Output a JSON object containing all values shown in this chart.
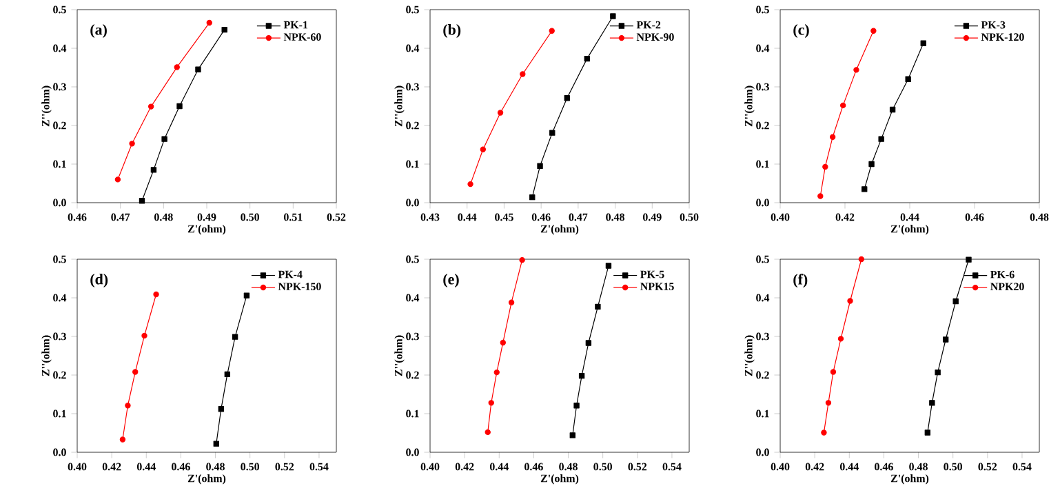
{
  "chart_data": [
    {
      "type": "line",
      "annotations": [
        "(a)"
      ],
      "xlabel": "Z'(ohm)",
      "ylabel": "Z''(ohm)",
      "legend": "top right",
      "xlim": [
        0.46,
        0.52
      ],
      "ylim": [
        0,
        0.5
      ],
      "xticks": [
        {
          "value": 0.46,
          "label": "0.46"
        },
        {
          "value": 0.47,
          "label": "0.47"
        },
        {
          "value": 0.48,
          "label": "0.48"
        },
        {
          "value": 0.49,
          "label": "0.49"
        },
        {
          "value": 0.5,
          "label": "0.50"
        },
        {
          "value": 0.51,
          "label": "0.51"
        },
        {
          "value": 0.52,
          "label": "0.52"
        }
      ],
      "yticks": [
        {
          "value": 0,
          "label": "0.0"
        },
        {
          "value": 0.1,
          "label": "0.1"
        },
        {
          "value": 0.2,
          "label": "0.2"
        },
        {
          "value": 0.3,
          "label": "0.3"
        },
        {
          "value": 0.4,
          "label": "0.4"
        },
        {
          "value": 0.5,
          "label": "0.5"
        }
      ],
      "series": [
        {
          "name": "PK-1",
          "color": "#000000",
          "marker": "square",
          "x": [
            0.475,
            0.4777,
            0.4802,
            0.4837,
            0.488,
            0.4941
          ],
          "values": [
            0.005,
            0.085,
            0.165,
            0.25,
            0.345,
            0.448
          ]
        },
        {
          "name": "NPK-60",
          "color": "#ff0000",
          "marker": "circle",
          "x": [
            0.4694,
            0.4727,
            0.4771,
            0.4831,
            0.4906
          ],
          "values": [
            0.06,
            0.153,
            0.249,
            0.351,
            0.466
          ]
        }
      ]
    },
    {
      "type": "line",
      "annotations": [
        "(b)"
      ],
      "xlabel": "Z'(ohm)",
      "ylabel": "Z''(ohm)",
      "legend": "top right",
      "xlim": [
        0.43,
        0.5
      ],
      "ylim": [
        0,
        0.5
      ],
      "xticks": [
        {
          "value": 0.43,
          "label": "0.43"
        },
        {
          "value": 0.44,
          "label": "0.44"
        },
        {
          "value": 0.45,
          "label": "0.45"
        },
        {
          "value": 0.46,
          "label": "0.46"
        },
        {
          "value": 0.47,
          "label": "0.47"
        },
        {
          "value": 0.48,
          "label": "0.48"
        },
        {
          "value": 0.49,
          "label": "0.49"
        },
        {
          "value": 0.5,
          "label": "0.50"
        }
      ],
      "yticks": [
        {
          "value": 0,
          "label": "0.0"
        },
        {
          "value": 0.1,
          "label": "0.1"
        },
        {
          "value": 0.2,
          "label": "0.2"
        },
        {
          "value": 0.3,
          "label": "0.3"
        },
        {
          "value": 0.4,
          "label": "0.4"
        },
        {
          "value": 0.5,
          "label": "0.5"
        }
      ],
      "series": [
        {
          "name": "PK-2",
          "color": "#000000",
          "marker": "square",
          "x": [
            0.4576,
            0.4597,
            0.463,
            0.467,
            0.4724,
            0.4794
          ],
          "values": [
            0.014,
            0.095,
            0.181,
            0.271,
            0.373,
            0.483
          ]
        },
        {
          "name": "NPK-90",
          "color": "#ff0000",
          "marker": "circle",
          "x": [
            0.4409,
            0.4443,
            0.449,
            0.455,
            0.4629
          ],
          "values": [
            0.048,
            0.138,
            0.233,
            0.333,
            0.445
          ]
        }
      ]
    },
    {
      "type": "line",
      "annotations": [
        "(c)"
      ],
      "xlabel": "Z'(ohm)",
      "ylabel": "Z''(ohm)",
      "legend": "top right",
      "xlim": [
        0.4,
        0.48
      ],
      "ylim": [
        0,
        0.5
      ],
      "xticks": [
        {
          "value": 0.4,
          "label": "0.40"
        },
        {
          "value": 0.42,
          "label": "0.42"
        },
        {
          "value": 0.44,
          "label": "0.44"
        },
        {
          "value": 0.46,
          "label": "0.46"
        },
        {
          "value": 0.48,
          "label": "0.48"
        }
      ],
      "yticks": [
        {
          "value": 0,
          "label": "0.0"
        },
        {
          "value": 0.1,
          "label": "0.1"
        },
        {
          "value": 0.2,
          "label": "0.2"
        },
        {
          "value": 0.3,
          "label": "0.3"
        },
        {
          "value": 0.4,
          "label": "0.4"
        },
        {
          "value": 0.5,
          "label": "0.5"
        }
      ],
      "series": [
        {
          "name": "PK-3",
          "color": "#000000",
          "marker": "square",
          "x": [
            0.426,
            0.4282,
            0.4312,
            0.4347,
            0.4395,
            0.4442
          ],
          "values": [
            0.035,
            0.1,
            0.165,
            0.241,
            0.32,
            0.413
          ]
        },
        {
          "name": "NPK-120",
          "color": "#ff0000",
          "marker": "circle",
          "x": [
            0.4124,
            0.4139,
            0.4162,
            0.4194,
            0.4235,
            0.4288
          ],
          "values": [
            0.017,
            0.093,
            0.17,
            0.252,
            0.344,
            0.445
          ]
        }
      ]
    },
    {
      "type": "line",
      "annotations": [
        "(d)"
      ],
      "xlabel": "Z'(ohm)",
      "ylabel": "Z''(ohm)",
      "legend": "top right",
      "xlim": [
        0.4,
        0.55
      ],
      "ylim": [
        0,
        0.5
      ],
      "xticks": [
        {
          "value": 0.4,
          "label": "0.40"
        },
        {
          "value": 0.42,
          "label": "0.42"
        },
        {
          "value": 0.44,
          "label": "0.44"
        },
        {
          "value": 0.46,
          "label": "0.46"
        },
        {
          "value": 0.48,
          "label": "0.48"
        },
        {
          "value": 0.5,
          "label": "0.50"
        },
        {
          "value": 0.52,
          "label": "0.52"
        },
        {
          "value": 0.54,
          "label": "0.54"
        }
      ],
      "yticks": [
        {
          "value": 0,
          "label": "0.0"
        },
        {
          "value": 0.1,
          "label": "0.1"
        },
        {
          "value": 0.2,
          "label": "0.2"
        },
        {
          "value": 0.3,
          "label": "0.3"
        },
        {
          "value": 0.4,
          "label": "0.4"
        },
        {
          "value": 0.5,
          "label": "0.5"
        }
      ],
      "series": [
        {
          "name": "PK-4",
          "color": "#000000",
          "marker": "square",
          "x": [
            0.4805,
            0.4833,
            0.4869,
            0.4914,
            0.4981
          ],
          "values": [
            0.022,
            0.112,
            0.202,
            0.299,
            0.406
          ]
        },
        {
          "name": "NPK-150",
          "color": "#ff0000",
          "marker": "circle",
          "x": [
            0.4263,
            0.4293,
            0.4336,
            0.4389,
            0.4457
          ],
          "values": [
            0.033,
            0.121,
            0.208,
            0.302,
            0.409
          ]
        }
      ]
    },
    {
      "type": "line",
      "annotations": [
        "(e)"
      ],
      "xlabel": "Z'(ohm)",
      "ylabel": "Z''(ohm)",
      "legend": "top right",
      "xlim": [
        0.4,
        0.55
      ],
      "ylim": [
        0,
        0.5
      ],
      "xticks": [
        {
          "value": 0.4,
          "label": "0.40"
        },
        {
          "value": 0.42,
          "label": "0.42"
        },
        {
          "value": 0.44,
          "label": "0.44"
        },
        {
          "value": 0.46,
          "label": "0.46"
        },
        {
          "value": 0.48,
          "label": "0.48"
        },
        {
          "value": 0.5,
          "label": "0.50"
        },
        {
          "value": 0.52,
          "label": "0.52"
        },
        {
          "value": 0.54,
          "label": "0.54"
        }
      ],
      "yticks": [
        {
          "value": 0,
          "label": "0.0"
        },
        {
          "value": 0.1,
          "label": "0.1"
        },
        {
          "value": 0.2,
          "label": "0.2"
        },
        {
          "value": 0.3,
          "label": "0.3"
        },
        {
          "value": 0.4,
          "label": "0.4"
        },
        {
          "value": 0.5,
          "label": "0.5"
        }
      ],
      "series": [
        {
          "name": "PK-5",
          "color": "#000000",
          "marker": "square",
          "x": [
            0.4825,
            0.4848,
            0.4878,
            0.4917,
            0.4971,
            0.5033
          ],
          "values": [
            0.044,
            0.121,
            0.198,
            0.283,
            0.377,
            0.483
          ]
        },
        {
          "name": "NPK15",
          "color": "#ff0000",
          "marker": "circle",
          "x": [
            0.4334,
            0.4354,
            0.4386,
            0.4422,
            0.4471,
            0.4533
          ],
          "values": [
            0.052,
            0.128,
            0.207,
            0.284,
            0.388,
            0.498
          ]
        }
      ]
    },
    {
      "type": "line",
      "annotations": [
        "(f)"
      ],
      "xlabel": "Z'(ohm)",
      "ylabel": "Z''(ohm)",
      "legend": "top right",
      "xlim": [
        0.4,
        0.55
      ],
      "ylim": [
        0,
        0.5
      ],
      "xticks": [
        {
          "value": 0.4,
          "label": "0.40"
        },
        {
          "value": 0.42,
          "label": "0.42"
        },
        {
          "value": 0.44,
          "label": "0.44"
        },
        {
          "value": 0.46,
          "label": "0.46"
        },
        {
          "value": 0.48,
          "label": "0.48"
        },
        {
          "value": 0.5,
          "label": "0.50"
        },
        {
          "value": 0.52,
          "label": "0.52"
        },
        {
          "value": 0.54,
          "label": "0.54"
        }
      ],
      "yticks": [
        {
          "value": 0,
          "label": "0.0"
        },
        {
          "value": 0.1,
          "label": "0.1"
        },
        {
          "value": 0.2,
          "label": "0.2"
        },
        {
          "value": 0.3,
          "label": "0.3"
        },
        {
          "value": 0.4,
          "label": "0.4"
        },
        {
          "value": 0.5,
          "label": "0.5"
        }
      ],
      "series": [
        {
          "name": "PK-6",
          "color": "#000000",
          "marker": "square",
          "x": [
            0.4853,
            0.4879,
            0.4912,
            0.4958,
            0.5016,
            0.5091
          ],
          "values": [
            0.051,
            0.128,
            0.207,
            0.292,
            0.391,
            0.499
          ]
        },
        {
          "name": "NPK20",
          "color": "#ff0000",
          "marker": "circle",
          "x": [
            0.4253,
            0.4279,
            0.4307,
            0.4351,
            0.4405,
            0.447
          ],
          "values": [
            0.051,
            0.128,
            0.208,
            0.294,
            0.392,
            0.5
          ]
        }
      ]
    }
  ]
}
